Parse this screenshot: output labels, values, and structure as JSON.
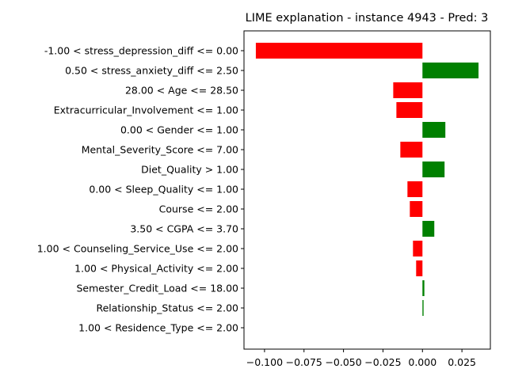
{
  "chart_data": {
    "type": "bar",
    "orientation": "horizontal",
    "title": "LIME explanation - instance 4943 - Pred: 3",
    "categories": [
      "-1.00 < stress_depression_diff <= 0.00",
      "0.50 < stress_anxiety_diff <= 2.50",
      "28.00 < Age <= 28.50",
      "Extracurricular_Involvement <= 1.00",
      "0.00 < Gender <= 1.00",
      "Mental_Severity_Score <= 7.00",
      "Diet_Quality > 1.00",
      "0.00 < Sleep_Quality <= 1.00",
      "Course <= 2.00",
      "3.50 < CGPA <= 3.70",
      "1.00 < Counseling_Service_Use <= 2.00",
      "1.00 < Physical_Activity <= 2.00",
      "Semester_Credit_Load <= 18.00",
      "Relationship_Status <= 2.00",
      "1.00 < Residence_Type <= 2.00"
    ],
    "values": [
      -0.1055,
      0.0355,
      -0.0185,
      -0.0165,
      0.0145,
      -0.014,
      0.014,
      -0.0095,
      -0.008,
      0.0075,
      -0.006,
      -0.004,
      0.0012,
      0.0007,
      0.0
    ],
    "xlim": [
      -0.113,
      0.043
    ],
    "xticks": [
      -0.1,
      -0.075,
      -0.05,
      -0.025,
      0.0,
      0.025
    ],
    "xtick_labels": [
      "−0.100",
      "−0.075",
      "−0.050",
      "−0.025",
      "0.000",
      "0.025"
    ],
    "positive_color": "#008000",
    "negative_color": "#ff0000",
    "grid": false
  }
}
